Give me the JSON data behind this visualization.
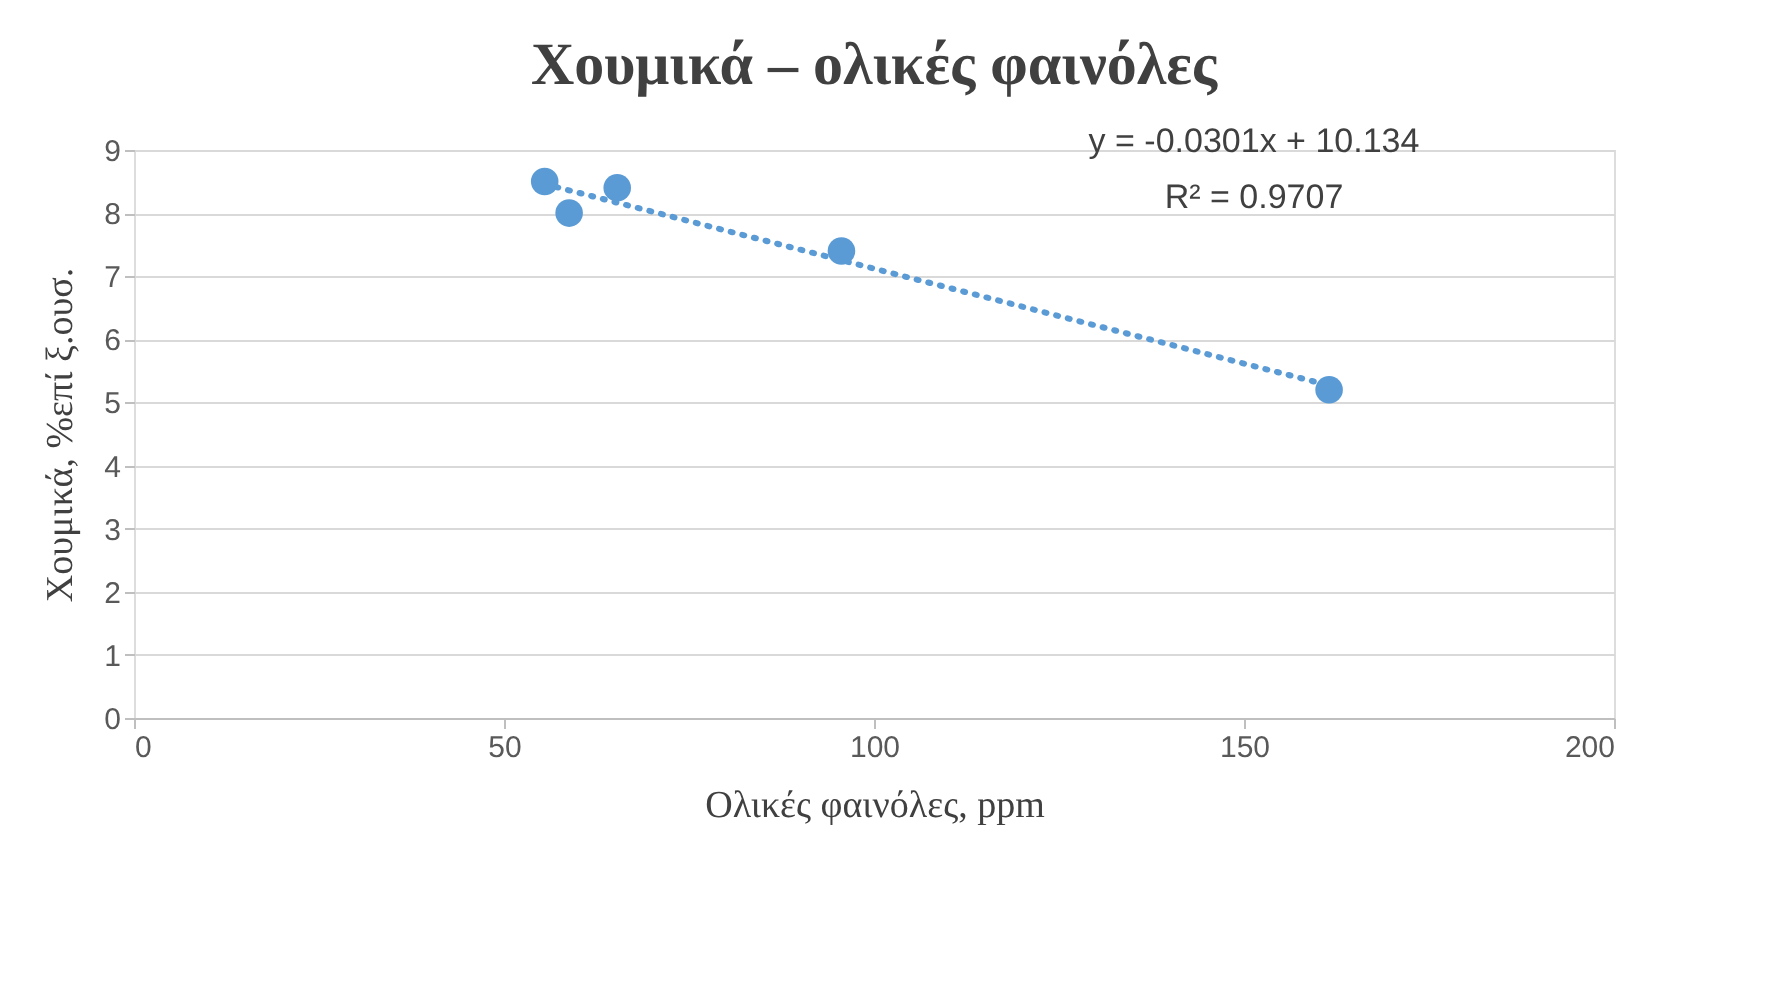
{
  "chart_data": {
    "type": "scatter",
    "title": "Χουμικά – ολικές φαινόλες",
    "xlabel": "Ολικές φαινόλες, ppm",
    "ylabel": "Χουμικά, %επί ξ.ουσ.",
    "x": [
      55.5,
      58.8,
      65.3,
      95.6,
      161.5
    ],
    "series": [
      {
        "color": "#5b9bd5",
        "values": [
          8.5,
          8.0,
          8.4,
          7.4,
          5.2
        ],
        "marker": "circle"
      },
      {
        "type": "line",
        "color": "#5b9bd5",
        "x": [
          55.5,
          161.5
        ],
        "values": [
          8.46,
          5.27
        ],
        "line_style": "dotted"
      }
    ],
    "annotations": [
      "y = -0.0301x + 10.134",
      "R² = 0.9707"
    ],
    "xlim": [
      0,
      200
    ],
    "xticks": [
      0,
      50,
      100,
      150,
      200
    ],
    "ylim": [
      0,
      9
    ],
    "yticks": [
      0,
      1,
      2,
      3,
      4,
      5,
      6,
      7,
      8,
      9
    ],
    "grid": "y"
  }
}
